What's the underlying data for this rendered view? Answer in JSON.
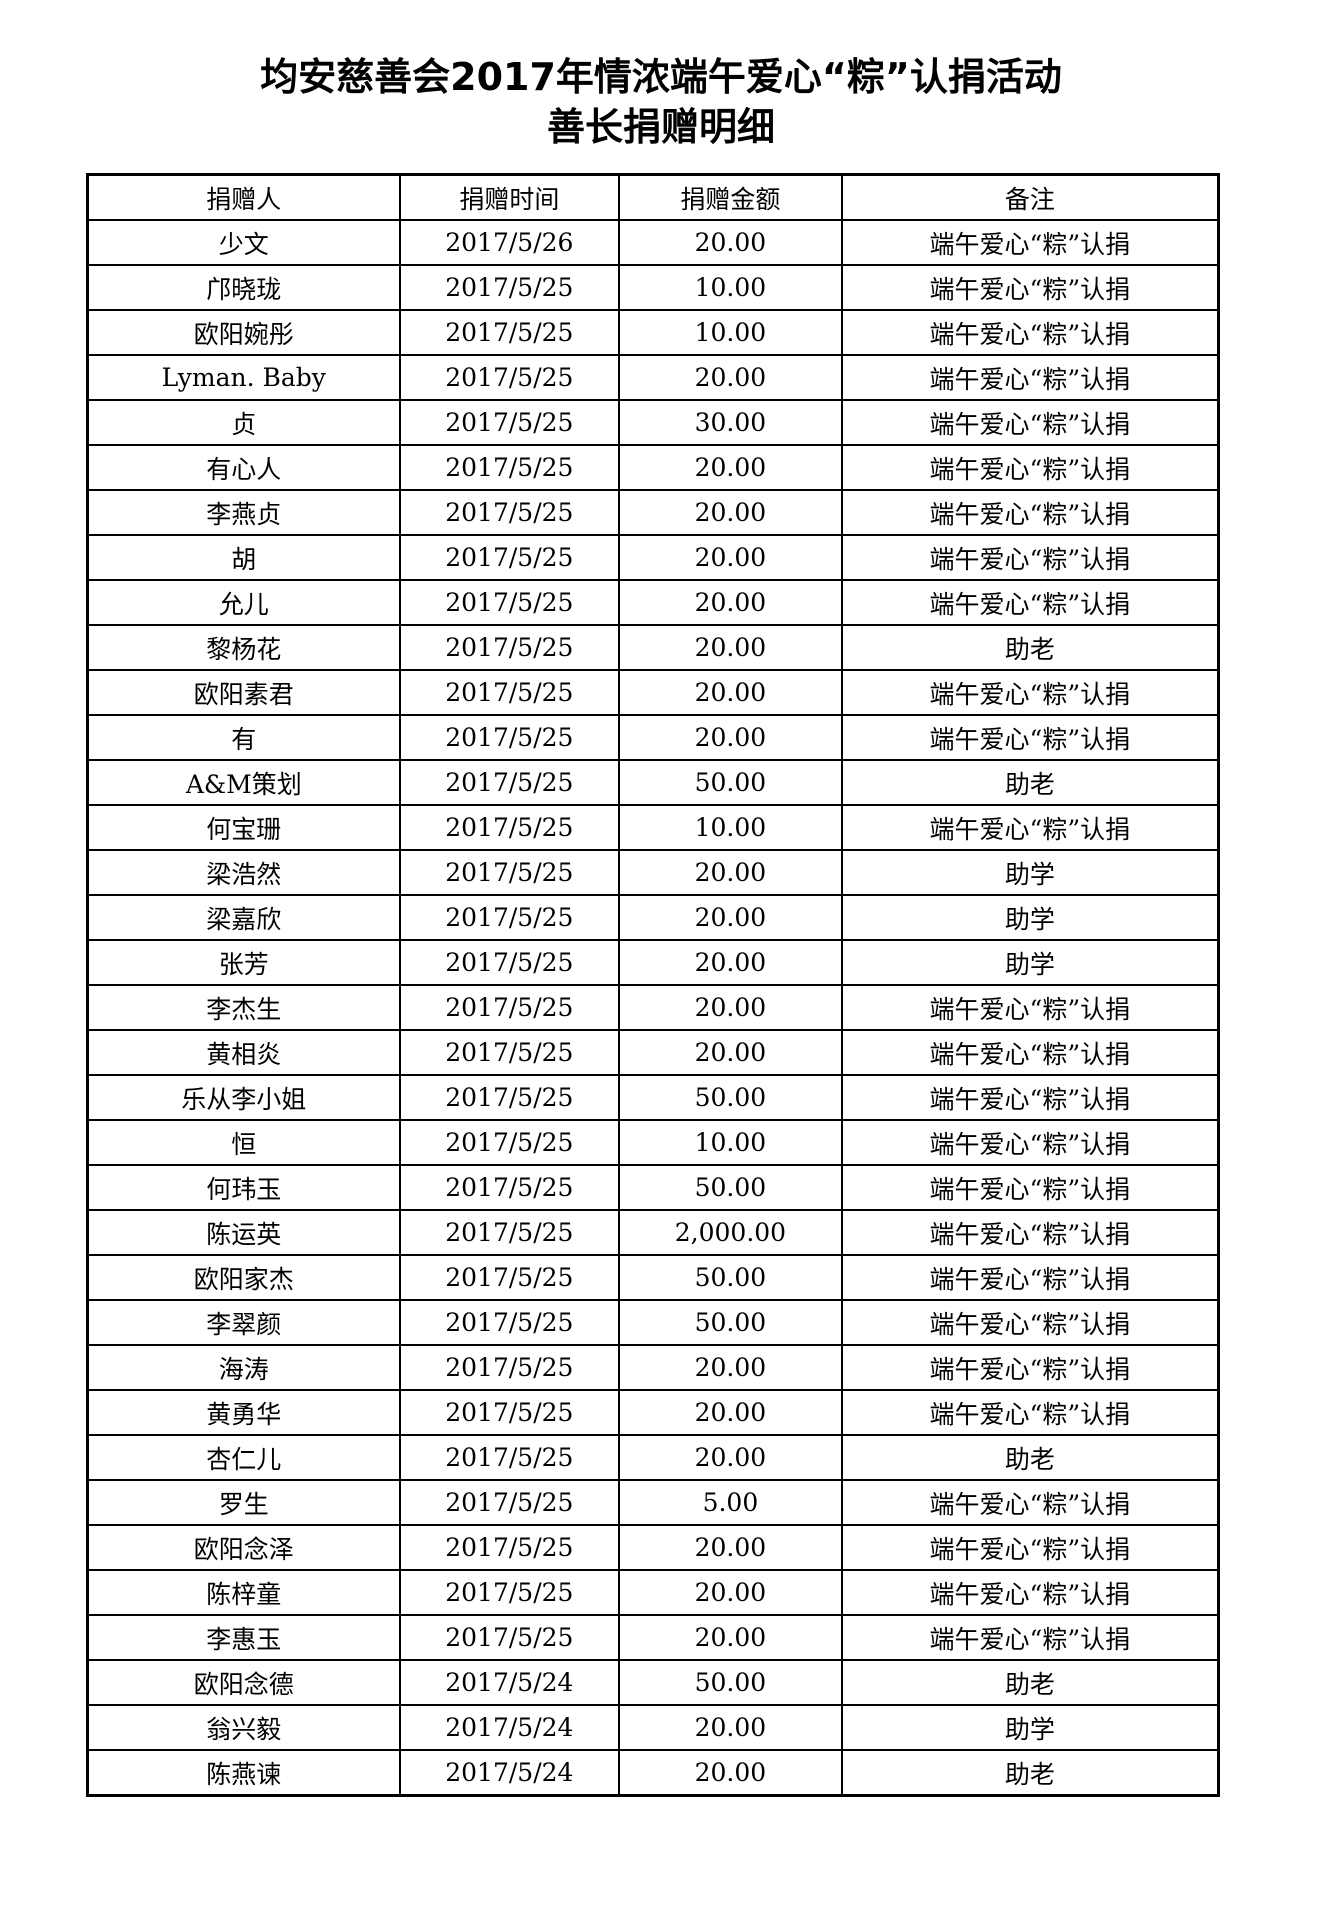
{
  "title_line1": "均安慈善会2017年情浓端午爱心“粽”认捐活动",
  "title_line2": "善长捐赠明细",
  "columns": [
    "捐赠人",
    "捐赠时间",
    "捐赠金额",
    "备注"
  ],
  "rows": [
    [
      "少文",
      "2017/5/26",
      "20.00",
      "端午爱心“粽”认捐"
    ],
    [
      "邝晓珑",
      "2017/5/25",
      "10.00",
      "端午爱心“粽”认捐"
    ],
    [
      "欧阳婉彤",
      "2017/5/25",
      "10.00",
      "端午爱心“粽”认捐"
    ],
    [
      "Lyman. Baby",
      "2017/5/25",
      "20.00",
      "端午爱心“粽”认捐"
    ],
    [
      "贞",
      "2017/5/25",
      "30.00",
      "端午爱心“粽”认捐"
    ],
    [
      "有心人",
      "2017/5/25",
      "20.00",
      "端午爱心“粽”认捐"
    ],
    [
      "李燕贞",
      "2017/5/25",
      "20.00",
      "端午爱心“粽”认捐"
    ],
    [
      "胡",
      "2017/5/25",
      "20.00",
      "端午爱心“粽”认捐"
    ],
    [
      "允儿",
      "2017/5/25",
      "20.00",
      "端午爱心“粽”认捐"
    ],
    [
      "黎杨花",
      "2017/5/25",
      "20.00",
      "助老"
    ],
    [
      "欧阳素君",
      "2017/5/25",
      "20.00",
      "端午爱心“粽”认捐"
    ],
    [
      "有",
      "2017/5/25",
      "20.00",
      "端午爱心“粽”认捐"
    ],
    [
      "A&M策划",
      "2017/5/25",
      "50.00",
      "助老"
    ],
    [
      "何宝珊",
      "2017/5/25",
      "10.00",
      "端午爱心“粽”认捐"
    ],
    [
      "梁浩然",
      "2017/5/25",
      "20.00",
      "助学"
    ],
    [
      "梁嘉欣",
      "2017/5/25",
      "20.00",
      "助学"
    ],
    [
      "张芳",
      "2017/5/25",
      "20.00",
      "助学"
    ],
    [
      "李杰生",
      "2017/5/25",
      "20.00",
      "端午爱心“粽”认捐"
    ],
    [
      "黄相炎",
      "2017/5/25",
      "20.00",
      "端午爱心“粽”认捐"
    ],
    [
      "乐从李小姐",
      "2017/5/25",
      "50.00",
      "端午爱心“粽”认捐"
    ],
    [
      "恒",
      "2017/5/25",
      "10.00",
      "端午爱心“粽”认捐"
    ],
    [
      "何玮玉",
      "2017/5/25",
      "50.00",
      "端午爱心“粽”认捐"
    ],
    [
      "陈运英",
      "2017/5/25",
      "2,000.00",
      "端午爱心“粽”认捐"
    ],
    [
      "欧阳家杰",
      "2017/5/25",
      "50.00",
      "端午爱心“粽”认捐"
    ],
    [
      "李翠颜",
      "2017/5/25",
      "50.00",
      "端午爱心“粽”认捐"
    ],
    [
      "海涛",
      "2017/5/25",
      "20.00",
      "端午爱心“粽”认捐"
    ],
    [
      "黄勇华",
      "2017/5/25",
      "20.00",
      "端午爱心“粽”认捐"
    ],
    [
      "杏仁儿",
      "2017/5/25",
      "20.00",
      "助老"
    ],
    [
      "罗生",
      "2017/5/25",
      "5.00",
      "端午爱心“粽”认捐"
    ],
    [
      "欧阳念泽",
      "2017/5/25",
      "20.00",
      "端午爱心“粽”认捐"
    ],
    [
      "陈梓童",
      "2017/5/25",
      "20.00",
      "端午爱心“粽”认捐"
    ],
    [
      "李惠玉",
      "2017/5/25",
      "20.00",
      "端午爱心“粽”认捐"
    ],
    [
      "欧阳念德",
      "2017/5/24",
      "50.00",
      "助老"
    ],
    [
      "翁兴毅",
      "2017/5/24",
      "20.00",
      "助学"
    ],
    [
      "陈燕谏",
      "2017/5/24",
      "20.00",
      "助老"
    ]
  ]
}
